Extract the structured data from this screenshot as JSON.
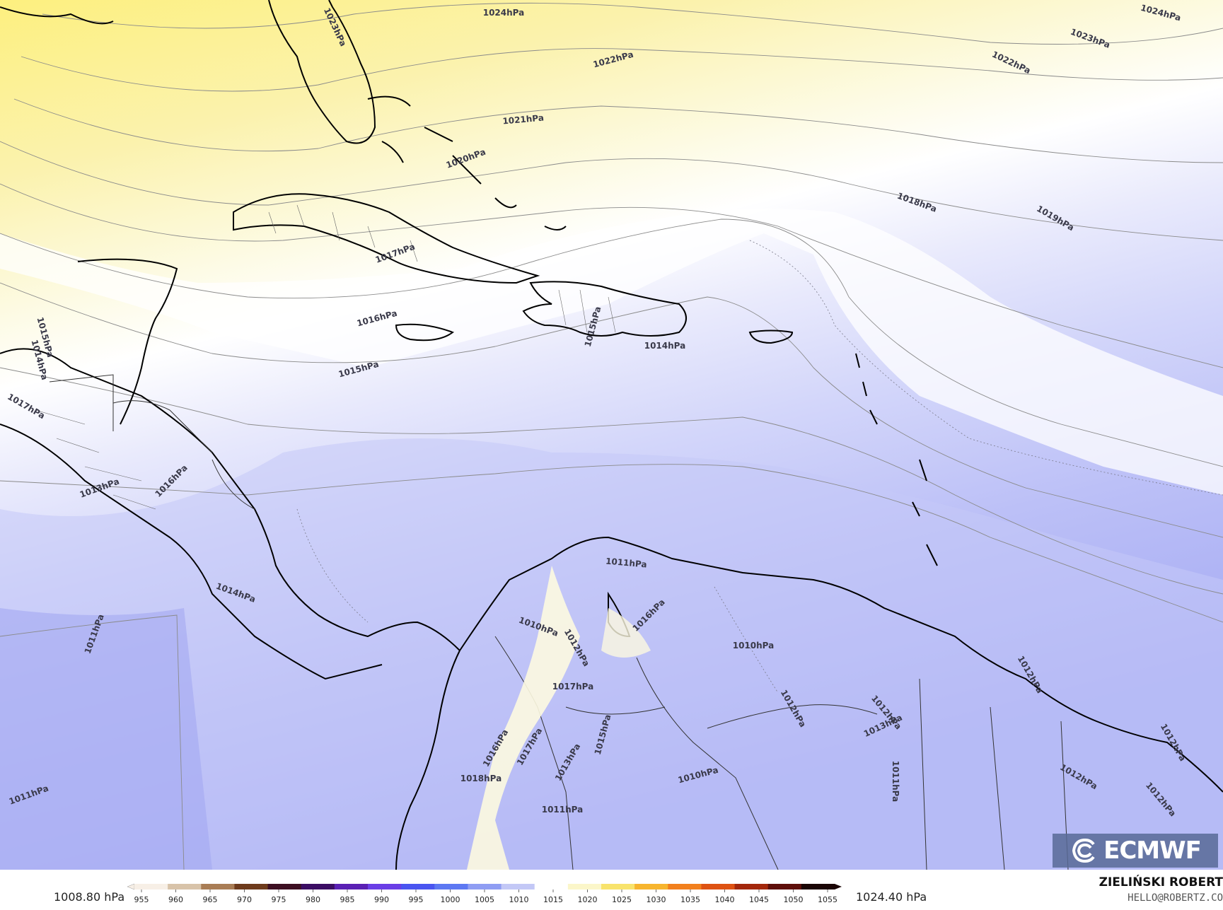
{
  "map": {
    "isobar_labels": [
      {
        "text": "1024hPa"
      },
      {
        "text": "1024hPa"
      },
      {
        "text": "1023hPa"
      },
      {
        "text": "1023hPa"
      },
      {
        "text": "1022hPa"
      },
      {
        "text": "1022hPa"
      },
      {
        "text": "1021hPa"
      },
      {
        "text": "1020hPa"
      },
      {
        "text": "1019hPa"
      },
      {
        "text": "1018hPa"
      },
      {
        "text": "1017hPa"
      },
      {
        "text": "1016hPa"
      },
      {
        "text": "1015hPa"
      },
      {
        "text": "1015hPa"
      },
      {
        "text": "1014hPa"
      },
      {
        "text": "1015hPa"
      },
      {
        "text": "1014hPa"
      },
      {
        "text": "1017hPa"
      },
      {
        "text": "1013hPa"
      },
      {
        "text": "1016hPa"
      },
      {
        "text": "1014hPa"
      },
      {
        "text": "1011hPa"
      },
      {
        "text": "1011hPa"
      },
      {
        "text": "1011hPa"
      },
      {
        "text": "1010hPa"
      },
      {
        "text": "1012hPa"
      },
      {
        "text": "1017hPa"
      },
      {
        "text": "1016hPa"
      },
      {
        "text": "1010hPa"
      },
      {
        "text": "1012hPa"
      },
      {
        "text": "1012hPa"
      },
      {
        "text": "1013hPa"
      },
      {
        "text": "1012hPa"
      },
      {
        "text": "1011hPa"
      },
      {
        "text": "1012hPa"
      },
      {
        "text": "1012hPa"
      },
      {
        "text": "1012hPa"
      },
      {
        "text": "1010hPa"
      },
      {
        "text": "1011hPa"
      },
      {
        "text": "1018hPa"
      },
      {
        "text": "1016hPa"
      },
      {
        "text": "1017hPa"
      },
      {
        "text": "1013hPa"
      },
      {
        "text": "1015hPa"
      }
    ]
  },
  "logo": {
    "text": "ECMWF"
  },
  "colorbar": {
    "min_label": "1008.80 hPa",
    "max_label": "1024.40 hPa",
    "ticks": [
      "955",
      "960",
      "965",
      "970",
      "975",
      "980",
      "985",
      "990",
      "995",
      "1000",
      "1005",
      "1010",
      "1015",
      "1020",
      "1025",
      "1030",
      "1035",
      "1040",
      "1045",
      "1050",
      "1055"
    ],
    "colors": [
      "#f7efe6",
      "#d8c3a9",
      "#a97d55",
      "#6e3b1c",
      "#3d0f22",
      "#3b0d63",
      "#5a20b4",
      "#6a3ee6",
      "#4a55f0",
      "#5d78f2",
      "#8f9df3",
      "#c3c8f6",
      "#ffffff",
      "#fbf6c9",
      "#f8e36c",
      "#f7b52e",
      "#f2801d",
      "#de5212",
      "#a3270b",
      "#5e0f0a",
      "#1a0505"
    ]
  },
  "author": {
    "name": "ZIELIŃSKI ROBERT",
    "email": "HELLO@ROBERTZ.CO"
  },
  "colors": {
    "high": "#fbf1a4",
    "mid": "#ffffff",
    "low": "#a7acf5",
    "coast": "#000000",
    "borders": "#333333",
    "isobar": "#8a8a8a"
  }
}
